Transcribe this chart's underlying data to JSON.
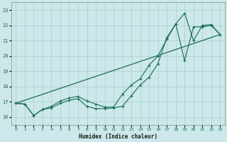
{
  "xlabel": "Humidex (Indice chaleur)",
  "background_color": "#cce8ea",
  "grid_color": "#aacccc",
  "line_color": "#1a6b5a",
  "xlim": [
    -0.5,
    23.5
  ],
  "ylim": [
    15.5,
    23.5
  ],
  "xticks": [
    0,
    1,
    2,
    3,
    4,
    5,
    6,
    7,
    8,
    9,
    10,
    11,
    12,
    13,
    14,
    15,
    16,
    17,
    18,
    19,
    20,
    21,
    22,
    23
  ],
  "yticks": [
    16,
    17,
    18,
    19,
    20,
    21,
    22,
    23
  ],
  "line1_x": [
    0,
    1,
    2,
    3,
    4,
    5,
    6,
    7,
    8,
    9,
    10,
    11,
    12,
    13,
    14,
    15,
    16,
    17,
    18,
    19,
    20,
    21,
    22,
    23
  ],
  "line1_y": [
    16.9,
    16.85,
    16.1,
    16.5,
    16.6,
    16.9,
    17.1,
    17.2,
    16.7,
    16.55,
    16.55,
    16.6,
    16.7,
    17.4,
    18.1,
    18.6,
    19.5,
    21.2,
    22.1,
    19.7,
    21.9,
    21.9,
    22.0,
    21.4
  ],
  "line2_x": [
    0,
    1,
    2,
    3,
    4,
    5,
    6,
    7,
    8,
    9,
    10,
    11,
    12,
    13,
    14,
    15,
    16,
    17,
    18,
    19,
    20,
    21,
    22,
    23
  ],
  "line2_y": [
    16.9,
    16.85,
    16.1,
    16.5,
    16.7,
    17.05,
    17.25,
    17.35,
    17.05,
    16.85,
    16.65,
    16.65,
    17.5,
    18.1,
    18.5,
    19.4,
    20.0,
    21.1,
    22.1,
    22.8,
    21.0,
    22.0,
    22.05,
    21.4
  ],
  "line3_x": [
    0,
    23
  ],
  "line3_y": [
    16.9,
    21.4
  ]
}
